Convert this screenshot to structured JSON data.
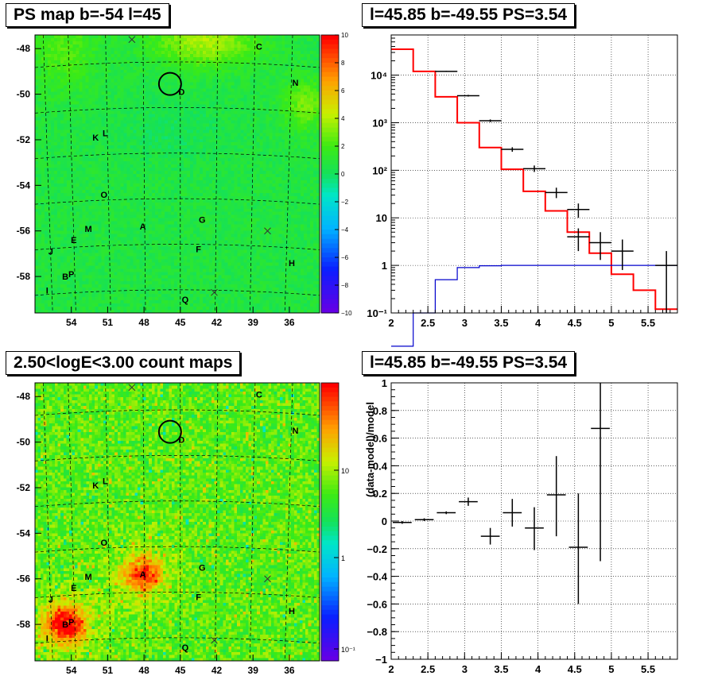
{
  "titles": {
    "ps_map": "PS map b=-54 l=45",
    "ps_spectrum": "l=45.85 b=-49.55 PS=3.54",
    "count_map": "2.50<logE<3.00 count maps",
    "ratio": "l=45.85 b=-49.55 PS=3.54"
  },
  "chart_data": [
    {
      "id": "ps_map",
      "type": "heatmap",
      "title": "PS map b=-54 l=45",
      "x_ticks": [
        "54",
        "51",
        "48",
        "45",
        "42",
        "39",
        "36"
      ],
      "y_ticks": [
        "-48",
        "-50",
        "-52",
        "-54",
        "-56",
        "-58"
      ],
      "colorbar": {
        "min": -10,
        "max": 10,
        "ticks": [
          "10",
          "8",
          "6",
          "4",
          "2",
          "0",
          "−2",
          "−4",
          "−6",
          "−8",
          "−10"
        ]
      },
      "sources": [
        {
          "label": "C",
          "l": 38.5,
          "b": -47.9
        },
        {
          "label": "N",
          "l": 35.5,
          "b": -49.5
        },
        {
          "label": "D",
          "l": 44.9,
          "b": -49.9
        },
        {
          "label": "K",
          "l": 52.0,
          "b": -51.9
        },
        {
          "label": "L",
          "l": 51.2,
          "b": -51.7
        },
        {
          "label": "O",
          "l": 51.3,
          "b": -54.4
        },
        {
          "label": "G",
          "l": 43.2,
          "b": -55.5
        },
        {
          "label": "A",
          "l": 48.1,
          "b": -55.8
        },
        {
          "label": "M",
          "l": 52.6,
          "b": -55.9
        },
        {
          "label": "E",
          "l": 53.8,
          "b": -56.4
        },
        {
          "label": "F",
          "l": 43.5,
          "b": -56.8
        },
        {
          "label": "J",
          "l": 55.7,
          "b": -56.9
        },
        {
          "label": "H",
          "l": 35.8,
          "b": -57.4
        },
        {
          "label": "B",
          "l": 54.5,
          "b": -58.0
        },
        {
          "label": "P",
          "l": 54.0,
          "b": -57.9
        },
        {
          "label": "I",
          "l": 56.0,
          "b": -58.6
        },
        {
          "label": "Q",
          "l": 44.6,
          "b": -59.0
        }
      ],
      "target": {
        "l": 45.85,
        "b": -49.55
      }
    },
    {
      "id": "ps_spectrum",
      "type": "line",
      "title": "l=45.85 b=-49.55 PS=3.54",
      "xlabel": "",
      "ylabel": "",
      "xlim": [
        2.0,
        5.9
      ],
      "ylim": [
        0.1,
        70000
      ],
      "yscale": "log",
      "x_ticks": [
        "2",
        "2.5",
        "3",
        "3.5",
        "4",
        "4.5",
        "5",
        "5.5"
      ],
      "y_ticks": [
        "10⁻¹",
        "1",
        "10",
        "10²",
        "10³",
        "10⁴"
      ],
      "bin_edges": [
        2.0,
        2.3,
        2.6,
        2.9,
        3.2,
        3.5,
        3.8,
        4.1,
        4.4,
        4.7,
        5.0,
        5.3,
        5.6,
        5.9
      ],
      "series": [
        {
          "role": "model",
          "color": "#ff0000",
          "values": [
            35000,
            12000,
            3500,
            1000,
            300,
            105,
            36,
            14,
            5,
            1.8,
            0.65,
            0.3,
            0.12
          ]
        },
        {
          "role": "point-source",
          "color": "#0000cc",
          "values": [
            0.02,
            0.1,
            0.5,
            0.9,
            0.98,
            1,
            1,
            1,
            1,
            1,
            1,
            1,
            1
          ]
        },
        {
          "role": "data",
          "color": "#000000",
          "points": [
            {
              "x": 2.75,
              "y": 12000,
              "lo": 11700,
              "hi": 12300
            },
            {
              "x": 3.05,
              "y": 3700,
              "lo": 3550,
              "hi": 3850
            },
            {
              "x": 3.35,
              "y": 1100,
              "lo": 1030,
              "hi": 1170
            },
            {
              "x": 3.65,
              "y": 275,
              "lo": 245,
              "hi": 305
            },
            {
              "x": 3.95,
              "y": 108,
              "lo": 92,
              "hi": 126
            },
            {
              "x": 4.25,
              "y": 34,
              "lo": 26,
              "hi": 43
            },
            {
              "x": 4.55,
              "y": 15,
              "lo": 10,
              "hi": 20
            },
            {
              "x": 4.55,
              "y": 4,
              "lo": 2,
              "hi": 6
            },
            {
              "x": 4.85,
              "y": 3,
              "lo": 1.3,
              "hi": 5
            },
            {
              "x": 5.15,
              "y": 2,
              "lo": 0.8,
              "hi": 3.5
            },
            {
              "x": 5.75,
              "y": 1,
              "lo": 0.1,
              "hi": 2
            }
          ]
        }
      ]
    },
    {
      "id": "count_map",
      "type": "heatmap",
      "title": "2.50<logE<3.00 count maps",
      "x_ticks": [
        "54",
        "51",
        "48",
        "45",
        "42",
        "39",
        "36"
      ],
      "y_ticks": [
        "-48",
        "-50",
        "-52",
        "-54",
        "-56",
        "-58"
      ],
      "colorbar": {
        "scale": "log",
        "ticks": [
          "10",
          "1",
          "10⁻¹"
        ]
      },
      "hotspots": [
        {
          "label": "B",
          "l": 54.5,
          "b": -58.0,
          "strength": 1.0
        },
        {
          "label": "A",
          "l": 48.1,
          "b": -55.8,
          "strength": 0.75
        }
      ]
    },
    {
      "id": "ratio",
      "type": "scatter",
      "title": "l=45.85 b=-49.55 PS=3.54",
      "ylabel": "(data-model)/model",
      "xlim": [
        2.0,
        5.9
      ],
      "ylim": [
        -1,
        1
      ],
      "x_ticks": [
        "2",
        "2.5",
        "3",
        "3.5",
        "4",
        "4.5",
        "5",
        "5.5"
      ],
      "y_ticks": [
        "1",
        "0.8",
        "0.6",
        "0.4",
        "0.2",
        "0",
        "−0.2",
        "−0.4",
        "−0.6",
        "−0.8",
        "−1"
      ],
      "points": [
        {
          "x0": 2.0,
          "x1": 2.3,
          "y": -0.01,
          "lo": -0.02,
          "hi": 0.0
        },
        {
          "x0": 2.3,
          "x1": 2.6,
          "y": 0.01,
          "lo": 0.0,
          "hi": 0.02
        },
        {
          "x0": 2.6,
          "x1": 2.9,
          "y": 0.06,
          "lo": 0.05,
          "hi": 0.07
        },
        {
          "x0": 2.9,
          "x1": 3.2,
          "y": 0.14,
          "lo": 0.11,
          "hi": 0.17
        },
        {
          "x0": 3.2,
          "x1": 3.5,
          "y": -0.11,
          "lo": -0.17,
          "hi": -0.05
        },
        {
          "x0": 3.5,
          "x1": 3.8,
          "y": 0.06,
          "lo": -0.04,
          "hi": 0.16
        },
        {
          "x0": 3.8,
          "x1": 4.1,
          "y": -0.05,
          "lo": -0.21,
          "hi": 0.1
        },
        {
          "x0": 4.1,
          "x1": 4.4,
          "y": 0.19,
          "lo": -0.11,
          "hi": 0.47
        },
        {
          "x0": 4.4,
          "x1": 4.7,
          "y": -0.19,
          "lo": -0.6,
          "hi": 0.2
        },
        {
          "x0": 4.7,
          "x1": 5.0,
          "y": 0.67,
          "lo": -0.29,
          "hi": 1.0
        }
      ]
    }
  ]
}
